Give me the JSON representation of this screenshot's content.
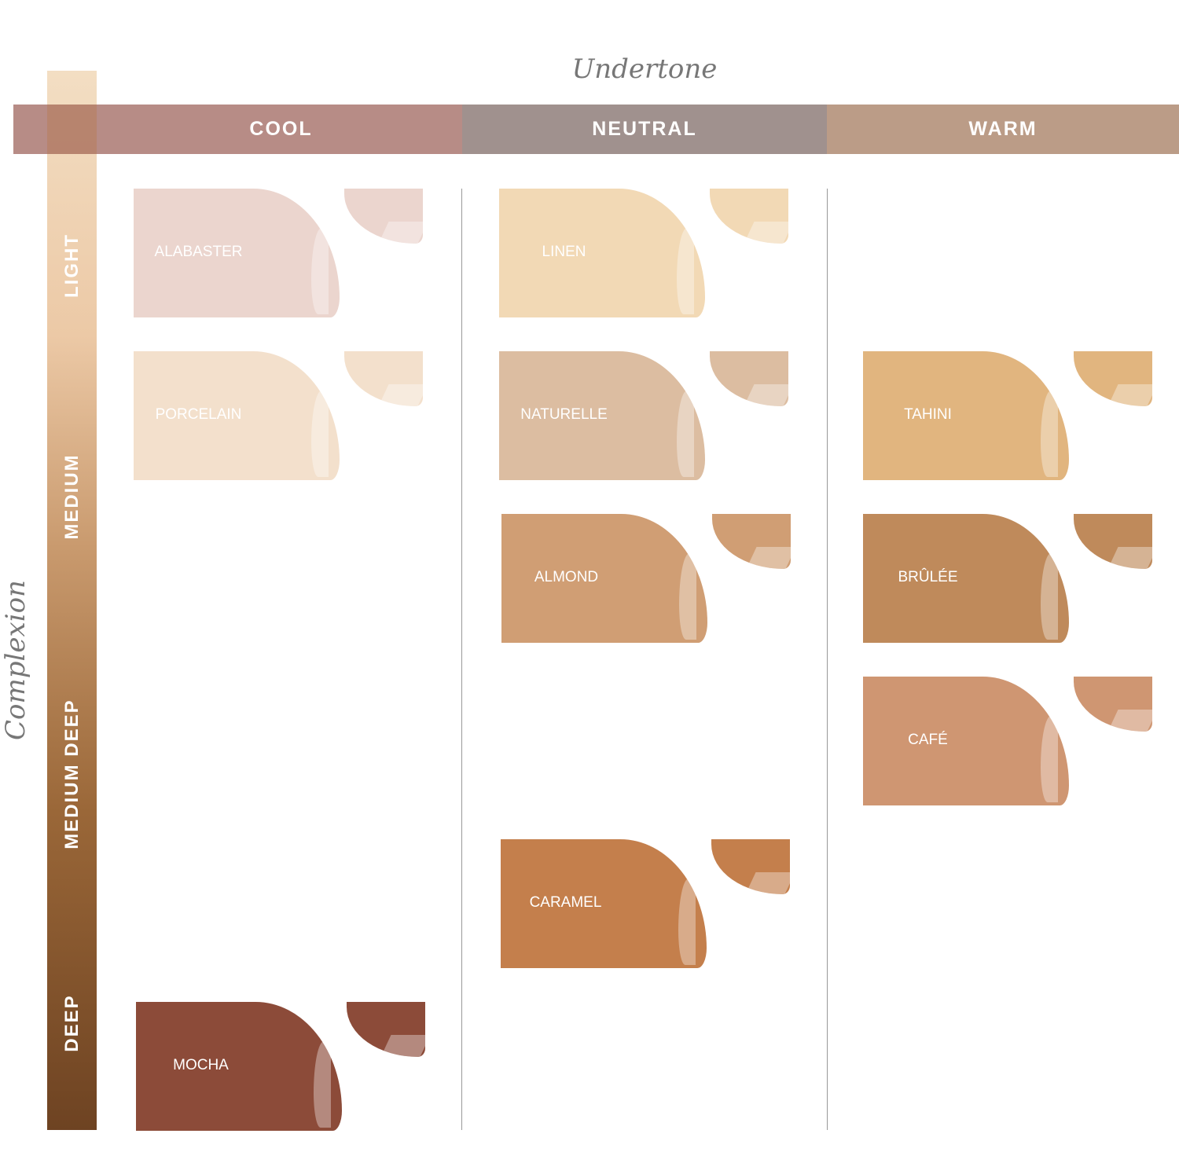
{
  "axes": {
    "undertone_title": "Undertone",
    "complexion_title": "Complexion"
  },
  "undertones": [
    {
      "label": "COOL",
      "color": "#b78c86"
    },
    {
      "label": "NEUTRAL",
      "color": "#a0918e"
    },
    {
      "label": "WARM",
      "color": "#bb9c87"
    }
  ],
  "complexions": [
    {
      "label": "LIGHT"
    },
    {
      "label": "MEDIUM"
    },
    {
      "label": "MEDIUM DEEP"
    },
    {
      "label": "DEEP"
    }
  ],
  "shades": [
    {
      "name": "ALABASTER",
      "undertone": "COOL",
      "color": "#ebd5ce"
    },
    {
      "name": "PORCELAIN",
      "undertone": "COOL",
      "color": "#f3e0cc"
    },
    {
      "name": "MOCHA",
      "undertone": "COOL",
      "color": "#8c4b39"
    },
    {
      "name": "LINEN",
      "undertone": "NEUTRAL",
      "color": "#f2d9b5"
    },
    {
      "name": "NATURELLE",
      "undertone": "NEUTRAL",
      "color": "#dcbda1"
    },
    {
      "name": "ALMOND",
      "undertone": "NEUTRAL",
      "color": "#d09e74"
    },
    {
      "name": "CARAMEL",
      "undertone": "NEUTRAL",
      "color": "#c47f4c"
    },
    {
      "name": "TAHINI",
      "undertone": "WARM",
      "color": "#e1b57f"
    },
    {
      "name": "BRÛLÉE",
      "undertone": "WARM",
      "color": "#bf8a5b"
    },
    {
      "name": "CAFÉ",
      "undertone": "WARM",
      "color": "#cf9672"
    }
  ]
}
